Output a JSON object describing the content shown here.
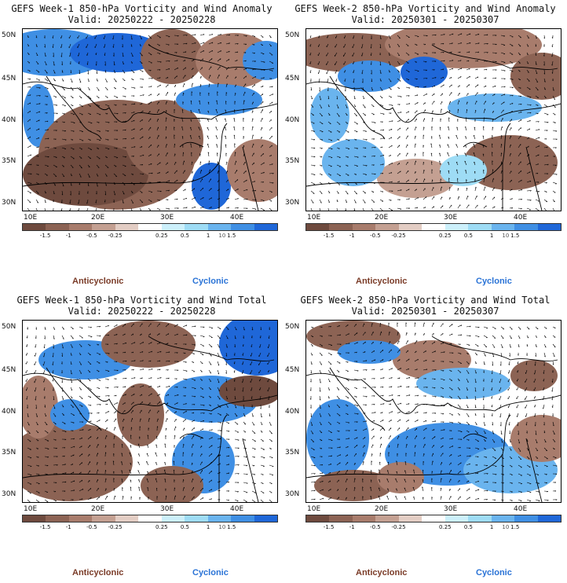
{
  "panels": [
    {
      "title": "GEFS Week-1 850-hPa Vorticity and Wind Anomaly",
      "valid": "Valid: 20250222 - 20250228"
    },
    {
      "title": "GEFS Week-2 850-hPa Vorticity and Wind Anomaly",
      "valid": "Valid: 20250301 - 20250307"
    },
    {
      "title": "GEFS Week-1 850-hPa Vorticity and Wind Total",
      "valid": "Valid: 20250222 - 20250228"
    },
    {
      "title": "GEFS Week-2 850-hPa Vorticity and Wind Total",
      "valid": "Valid: 20250301 - 20250307"
    }
  ],
  "lat_labels": [
    "50N",
    "45N",
    "40N",
    "35N",
    "30N"
  ],
  "lon_labels": [
    "10E",
    "20E",
    "30E",
    "40E"
  ],
  "colorbar": {
    "ticks": [
      "-1.5",
      "-1",
      "-0.5",
      "-0.25",
      "0.25",
      "0.5",
      "1",
      "1.5"
    ],
    "extra_label": "10",
    "colors": [
      "#6e4a3e",
      "#8c6354",
      "#a87c6c",
      "#c4a092",
      "#e3cdc4",
      "#ffffff",
      "#ccf0fb",
      "#9edcf5",
      "#6ab4ee",
      "#3f8fe4",
      "#1f67d8"
    ]
  },
  "legend": {
    "anticyclonic": "Anticyclonic",
    "cyclonic": "Cyclonic"
  },
  "colors": {
    "anticyclonic": "#7a3b27",
    "cyclonic": "#2a73d6"
  }
}
